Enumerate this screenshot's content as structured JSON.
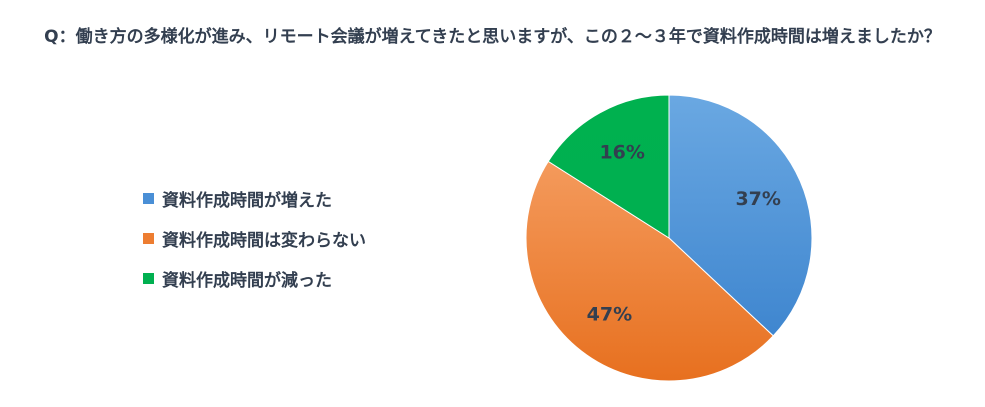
{
  "title": "Q：働き方の多様化が進み、リモート会議が増えてきたと思いますが、この２～３年で資料作成時間は増えましたか？",
  "chart_data": {
    "type": "pie",
    "title": "Q：働き方の多様化が進み、リモート会議が増えてきたと思いますが、この２～３年で資料作成時間は増えましたか？",
    "legend_position": "left",
    "start_angle_deg": 0,
    "direction": "clockwise",
    "slices": [
      {
        "label": "資料作成時間が増えた",
        "value": 37,
        "display": "37%",
        "color": "#4a8fd6"
      },
      {
        "label": "資料作成時間は変わらない",
        "value": 47,
        "display": "47%",
        "color": "#ed7d31"
      },
      {
        "label": "資料作成時間が減った",
        "value": 16,
        "display": "16%",
        "color": "#00b050"
      }
    ]
  }
}
